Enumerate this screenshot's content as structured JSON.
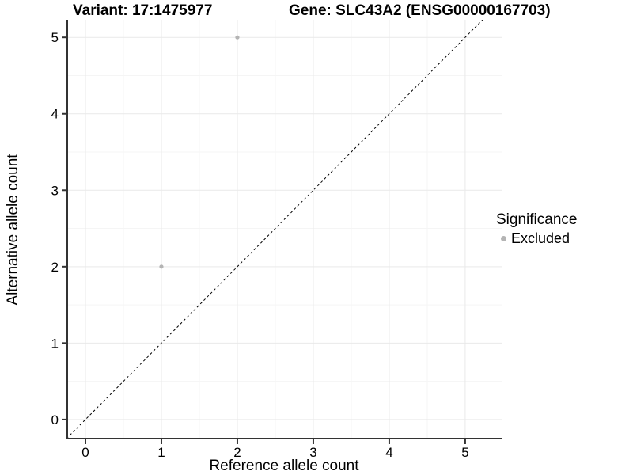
{
  "header": {
    "title_left": "Variant: 17:1475977",
    "title_right": "Gene: SLC43A2 (ENSG00000167703)"
  },
  "legend": {
    "title": "Significance",
    "items": [
      {
        "label": "Excluded",
        "color": "#b4b4b4"
      }
    ]
  },
  "chart_data": {
    "type": "scatter",
    "title_left": "Variant: 17:1475977",
    "title_right": "Gene: SLC43A2 (ENSG00000167703)",
    "xlabel": "Reference allele count",
    "ylabel": "Alternative allele count",
    "xlim": [
      -0.25,
      5.48
    ],
    "ylim": [
      -0.26,
      5.23
    ],
    "xticks": [
      0,
      1,
      2,
      3,
      4,
      5
    ],
    "yticks": [
      0,
      1,
      2,
      3,
      4,
      5
    ],
    "minor_ticks_x": [
      0.5,
      1.5,
      2.5,
      3.5,
      4.5
    ],
    "minor_ticks_y": [
      0.5,
      1.5,
      2.5,
      3.5,
      4.5
    ],
    "grid": "major-and-minor",
    "legend_position": "right",
    "series": [
      {
        "name": "Excluded",
        "color": "#b4b4b4",
        "points": [
          {
            "x": 1,
            "y": 2
          },
          {
            "x": 2,
            "y": 5
          }
        ]
      }
    ],
    "reference_line": {
      "type": "identity",
      "slope": 1,
      "intercept": 0,
      "style": "dashed",
      "color": "#000000"
    },
    "point_radius": 2.6,
    "colors": {
      "grid_major": "#e9e9e9",
      "grid_minor": "#f5f5f5",
      "axis_line": "#333333",
      "tick": "#333333",
      "text": "#000000",
      "background": "#ffffff"
    }
  }
}
